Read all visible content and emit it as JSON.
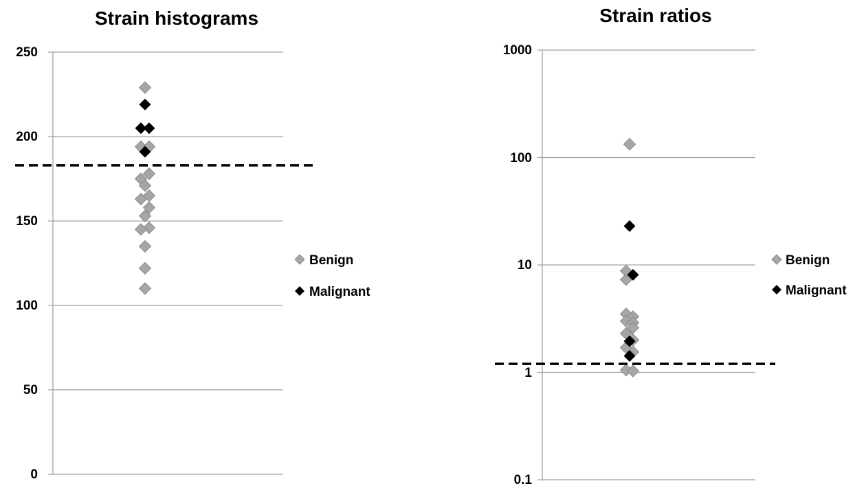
{
  "chart_data": [
    {
      "type": "scatter",
      "title": "Strain histograms",
      "xlabel": "",
      "ylabel": "",
      "y_scale": "linear",
      "ylim": [
        0,
        250
      ],
      "y_ticks": [
        0,
        50,
        100,
        150,
        200,
        250
      ],
      "y_tick_labels": [
        "0",
        "50",
        "100",
        "150",
        "200",
        "250"
      ],
      "grid": true,
      "legend_position": "right",
      "threshold": 183,
      "series": [
        {
          "name": "Benign",
          "color": "#a6a6a6",
          "marker": "diamond",
          "points": [
            {
              "x": 0,
              "y": 229
            },
            {
              "x": -0.6,
              "y": 194
            },
            {
              "x": 0.6,
              "y": 194
            },
            {
              "x": 0.6,
              "y": 178
            },
            {
              "x": -0.6,
              "y": 175
            },
            {
              "x": 0,
              "y": 171
            },
            {
              "x": 0.6,
              "y": 165
            },
            {
              "x": -0.6,
              "y": 163
            },
            {
              "x": 0.6,
              "y": 158
            },
            {
              "x": 0,
              "y": 153
            },
            {
              "x": 0.6,
              "y": 146
            },
            {
              "x": -0.6,
              "y": 145
            },
            {
              "x": 0,
              "y": 135
            },
            {
              "x": 0,
              "y": 122
            },
            {
              "x": 0,
              "y": 110
            }
          ]
        },
        {
          "name": "Malignant",
          "color": "#000000",
          "marker": "diamond",
          "points": [
            {
              "x": 0,
              "y": 219
            },
            {
              "x": -0.6,
              "y": 205
            },
            {
              "x": 0.6,
              "y": 205
            },
            {
              "x": 0,
              "y": 191
            }
          ]
        }
      ]
    },
    {
      "type": "scatter",
      "title": "Strain ratios",
      "xlabel": "",
      "ylabel": "",
      "y_scale": "log",
      "ylim": [
        0.1,
        1000
      ],
      "y_ticks": [
        0.1,
        1,
        10,
        100,
        1000
      ],
      "y_tick_labels": [
        "0.1",
        "1",
        "10",
        "100",
        "1000"
      ],
      "grid": true,
      "legend_position": "right",
      "threshold": 1.2,
      "series": [
        {
          "name": "Benign",
          "color": "#a6a6a6",
          "marker": "diamond",
          "points": [
            {
              "x": 0,
              "y": 133
            },
            {
              "x": -0.5,
              "y": 8.8
            },
            {
              "x": -0.5,
              "y": 7.3
            },
            {
              "x": -0.5,
              "y": 3.5
            },
            {
              "x": 0.5,
              "y": 3.3
            },
            {
              "x": -0.5,
              "y": 3.0
            },
            {
              "x": 0.5,
              "y": 2.9
            },
            {
              "x": 0.5,
              "y": 2.6
            },
            {
              "x": -0.5,
              "y": 2.3
            },
            {
              "x": 0.5,
              "y": 2.0
            },
            {
              "x": -0.5,
              "y": 1.7
            },
            {
              "x": 0.5,
              "y": 1.55
            },
            {
              "x": -0.5,
              "y": 1.05
            },
            {
              "x": 0.5,
              "y": 1.03
            }
          ]
        },
        {
          "name": "Malignant",
          "color": "#000000",
          "marker": "diamond",
          "points": [
            {
              "x": 0,
              "y": 23
            },
            {
              "x": 0.5,
              "y": 8.1
            },
            {
              "x": 0,
              "y": 1.95
            },
            {
              "x": 0,
              "y": 1.42
            }
          ]
        }
      ]
    }
  ]
}
